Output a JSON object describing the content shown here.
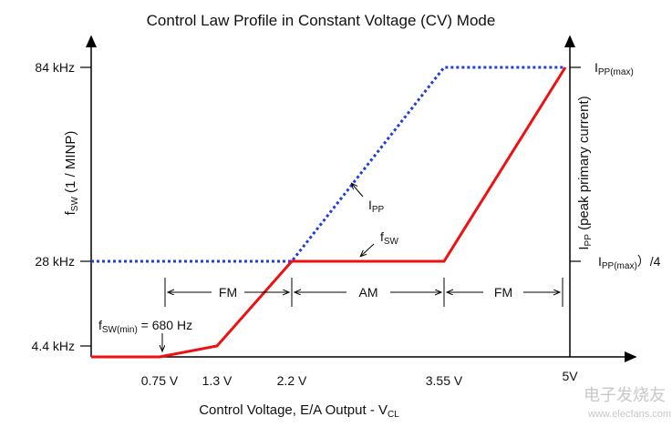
{
  "title": "Control Law Profile in Constant Voltage (CV) Mode",
  "y_axis_label": {
    "base": "f",
    "sub": "SW",
    "tail": " (1 / MINP)"
  },
  "y2_axis_label": {
    "base": "I",
    "sub": "PP",
    "tail": " (peak primary current)"
  },
  "x_axis_label": {
    "base": "Control Voltage, E/A Output - V",
    "sub": "CL"
  },
  "y_ticks": [
    "84 kHz",
    "28 kHz",
    "4.4 kHz"
  ],
  "y2_ticks": [
    {
      "base": "I",
      "sub": "PP(max)"
    },
    {
      "base": "I",
      "sub": "PP(max)",
      "tail": "）/4"
    }
  ],
  "x_ticks": [
    "0.75 V",
    "1.3 V",
    "2.2 V",
    "3.55 V",
    "5V"
  ],
  "regions": [
    "FM",
    "AM",
    "FM"
  ],
  "annotations": {
    "ipp": {
      "base": "I",
      "sub": "PP"
    },
    "fsw": {
      "base": "f",
      "sub": "SW"
    },
    "fsw_min": {
      "base": "f",
      "sub": "SW(min)",
      "tail": " = 680 Hz"
    }
  },
  "watermark": [
    "电子发烧友",
    "www.elecfans.com"
  ]
}
